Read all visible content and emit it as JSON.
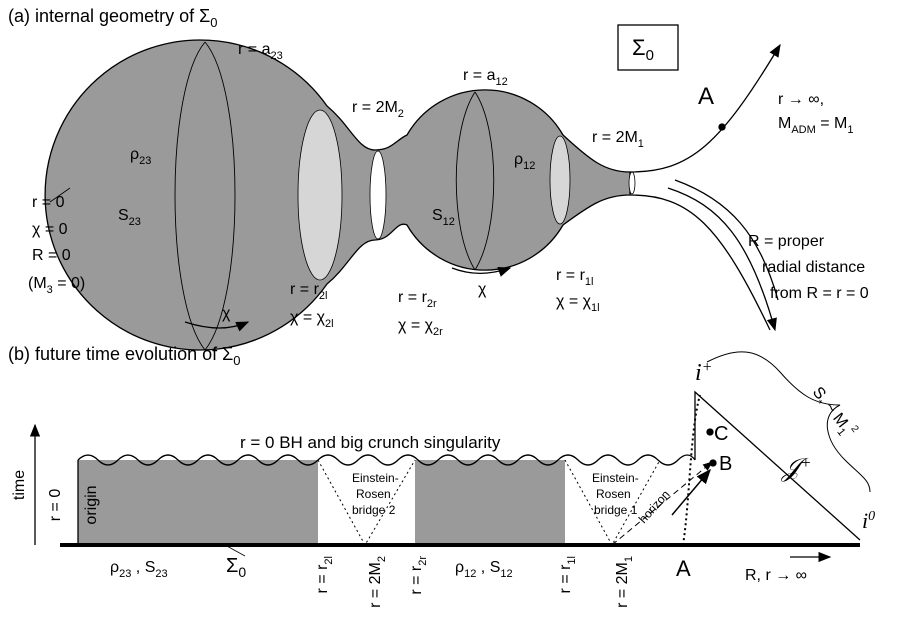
{
  "panel_a": {
    "labels": [
      {
        "parts": [
          "(a) internal geometry of Σ",
          "0"
        ]
      },
      {
        "parts": [
          "Σ",
          "0"
        ]
      },
      {
        "parts": [
          "r = a",
          "23"
        ]
      },
      {
        "parts": [
          "r = a",
          "12"
        ]
      },
      {
        "parts": [
          "r = 2M",
          "2"
        ]
      },
      {
        "parts": [
          "A"
        ]
      },
      {
        "parts": [
          "r → ∞,"
        ]
      },
      {
        "parts": [
          "M",
          "ADM",
          " = M",
          "1"
        ]
      },
      {
        "parts": [
          "r = 2M",
          "1"
        ]
      },
      {
        "parts": [
          "ρ",
          "23"
        ]
      },
      {
        "parts": [
          "ρ",
          "12"
        ]
      },
      {
        "parts": [
          "S",
          "23"
        ]
      },
      {
        "parts": [
          "S",
          "12"
        ]
      },
      {
        "parts": [
          "r = 0"
        ]
      },
      {
        "parts": [
          "χ = 0"
        ]
      },
      {
        "parts": [
          "R = 0"
        ]
      },
      {
        "parts": [
          "(M",
          "3",
          " = 0)"
        ]
      },
      {
        "parts": [
          "χ"
        ]
      },
      {
        "parts": [
          "r = r",
          "2l"
        ]
      },
      {
        "parts": [
          "χ = χ",
          "2l"
        ]
      },
      {
        "parts": [
          "r = r",
          "2r"
        ]
      },
      {
        "parts": [
          "χ = χ",
          "2r"
        ]
      },
      {
        "parts": [
          "χ"
        ]
      },
      {
        "parts": [
          "r = r",
          "1l"
        ]
      },
      {
        "parts": [
          "χ = χ",
          "1l"
        ]
      },
      {
        "parts": [
          "R = proper"
        ]
      },
      {
        "parts": [
          "radial distance"
        ]
      },
      {
        "parts": [
          "from R = r = 0"
        ]
      }
    ]
  },
  "panel_b": {
    "labels": [
      {
        "parts": [
          "(b) future time evolution of Σ",
          "0"
        ]
      },
      {
        "parts": [
          "i"
        ],
        "sup": "+"
      },
      {
        "parts": [
          "S",
          "*",
          " ~ M",
          "1"
        ],
        "sup": "2"
      },
      {
        "parts": [
          "𝒥"
        ],
        "sup": "+"
      },
      {
        "parts": [
          "r = 0 BH and big crunch singularity"
        ]
      },
      {
        "parts": [
          "time"
        ]
      },
      {
        "parts": [
          "r = 0"
        ]
      },
      {
        "parts": [
          "origin"
        ]
      },
      {
        "parts": [
          "C"
        ]
      },
      {
        "parts": [
          "B"
        ]
      },
      {
        "parts": [
          "Einstein-"
        ]
      },
      {
        "parts": [
          "Rosen"
        ]
      },
      {
        "parts": [
          "bridge 2"
        ]
      },
      {
        "parts": [
          "Einstein-"
        ]
      },
      {
        "parts": [
          "Rosen"
        ]
      },
      {
        "parts": [
          "bridge 1"
        ]
      },
      {
        "parts": [
          "horizon"
        ]
      },
      {
        "parts": [
          "ρ",
          "23",
          " , S",
          "23"
        ]
      },
      {
        "parts": [
          "Σ",
          "0"
        ]
      },
      {
        "parts": [
          "ρ",
          "12",
          " , S",
          "12"
        ]
      },
      {
        "parts": [
          "A"
        ]
      },
      {
        "parts": [
          "R, r → ∞"
        ]
      },
      {
        "parts": [
          "i"
        ],
        "sup": "0"
      },
      {
        "parts": [
          "r = r",
          "2l"
        ]
      },
      {
        "parts": [
          "r = 2M",
          "2"
        ]
      },
      {
        "parts": [
          "r = r",
          "2r"
        ]
      },
      {
        "parts": [
          "r = r",
          "1l"
        ]
      },
      {
        "parts": [
          "r = 2M",
          "1"
        ]
      }
    ]
  }
}
